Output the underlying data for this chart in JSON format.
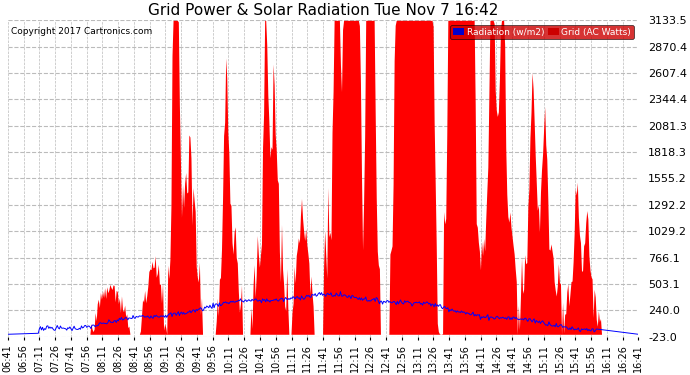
{
  "title": "Grid Power & Solar Radiation Tue Nov 7 16:42",
  "copyright": "Copyright 2017 Cartronics.com",
  "yticks": [
    -23.0,
    240.0,
    503.1,
    766.1,
    1029.2,
    1292.2,
    1555.2,
    1818.3,
    2081.3,
    2344.4,
    2607.4,
    2870.4,
    3133.5
  ],
  "ylim": [
    -23.0,
    3133.5
  ],
  "background_color": "#ffffff",
  "grid_color": "#bbbbbb",
  "red_color": "#ff0000",
  "blue_color": "#0000ff",
  "legend_radiation_label": "Radiation (w/m2)",
  "legend_grid_label": "Grid (AC Watts)",
  "title_fontsize": 11,
  "tick_fontsize": 8,
  "num_points": 600
}
